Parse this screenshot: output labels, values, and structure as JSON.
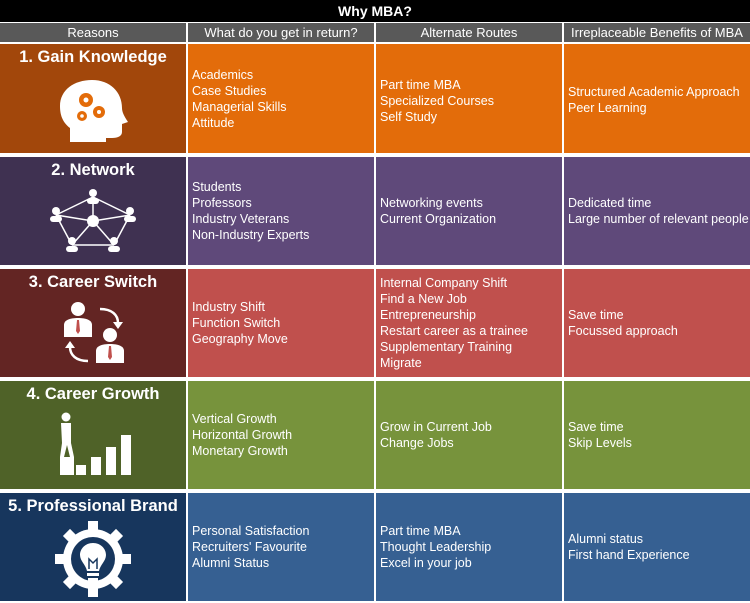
{
  "title": "Why MBA?",
  "headers": [
    "Reasons",
    "What do you get in return?",
    "Alternate Routes",
    "Irreplaceable Benefits of MBA"
  ],
  "colors": {
    "knowledge_reason": "#a2470b",
    "knowledge_cells": "#e36c0a",
    "network_reason": "#3f3151",
    "network_cells": "#5f497a",
    "switch_reason": "#632523",
    "switch_cells": "#c0504d",
    "growth_reason": "#4f6228",
    "growth_cells": "#77933c",
    "brand_reason": "#17365d",
    "brand_cells": "#366092",
    "header": "#595959"
  },
  "rows": [
    {
      "reason": "1. Gain Knowledge",
      "icon": "brain-gears-icon",
      "returns": [
        "Academics",
        "Case Studies",
        "Managerial Skills",
        "Attitude"
      ],
      "alternates": [
        "Part time MBA",
        "Specialized Courses",
        "Self Study"
      ],
      "benefits": [
        "Structured Academic Approach",
        "Peer Learning"
      ]
    },
    {
      "reason": "2. Network",
      "icon": "network-people-icon",
      "returns": [
        "Students",
        "Professors",
        "Industry Veterans",
        "Non-Industry Experts"
      ],
      "alternates": [
        "Networking events",
        "Current Organization"
      ],
      "benefits": [
        "Dedicated time",
        "Large number of relevant people"
      ]
    },
    {
      "reason": "3. Career Switch",
      "icon": "switch-people-icon",
      "returns": [
        "Industry Shift",
        "Function Switch",
        "Geography Move"
      ],
      "alternates": [
        "Internal Company Shift",
        "Find a New Job",
        "Entrepreneurship",
        "Restart career as a trainee",
        "Supplementary Training",
        "Migrate"
      ],
      "benefits": [
        "Save time",
        "Focussed approach"
      ]
    },
    {
      "reason": "4. Career Growth",
      "icon": "growth-stairs-icon",
      "returns": [
        "Vertical Growth",
        "Horizontal Growth",
        "Monetary Growth"
      ],
      "alternates": [
        "Grow in Current Job",
        "Change Jobs"
      ],
      "benefits": [
        "Save time",
        "Skip Levels"
      ]
    },
    {
      "reason": "5. Professional Brand",
      "icon": "gear-lightbulb-icon",
      "returns": [
        "Personal Satisfaction",
        "Recruiters' Favourite",
        "Alumni Status"
      ],
      "alternates": [
        "Part time MBA",
        "Thought Leadership",
        "Excel in your job"
      ],
      "benefits": [
        "Alumni status",
        "First hand Experience"
      ]
    }
  ]
}
